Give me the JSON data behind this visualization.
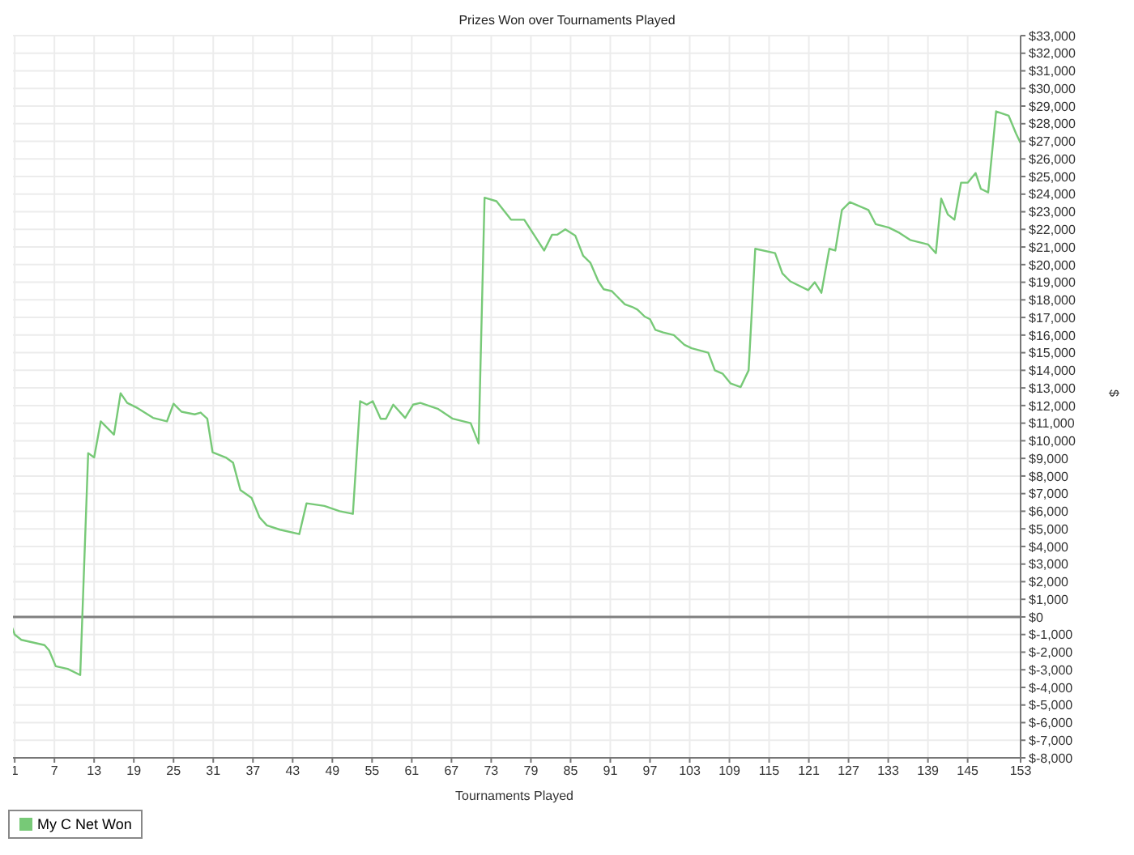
{
  "chart_data": {
    "type": "line",
    "title": "Prizes Won over Tournaments Played",
    "xlabel": "Tournaments Played",
    "ylabel": "$",
    "x": [
      0,
      1,
      2,
      5.5,
      6.2,
      7.2,
      9,
      10.9,
      12.1,
      13,
      14,
      16,
      17,
      18,
      19.6,
      21.9,
      24,
      25,
      26.2,
      28.2,
      29.1,
      30.1,
      30.9,
      32.9,
      34,
      35.1,
      36.8,
      38,
      39.1,
      41.1,
      44,
      45.1,
      47.8,
      50.1,
      52.1,
      53.2,
      54.2,
      55.1,
      56.3,
      57.1,
      58.2,
      60,
      61.2,
      62.3,
      65,
      67.2,
      69.9,
      71.1,
      72,
      73.8,
      76,
      78,
      81,
      82.2,
      83,
      84.2,
      85.7,
      86.9,
      88,
      89.2,
      90,
      91.2,
      92,
      93.2,
      94.3,
      95.1,
      96.2,
      97,
      97.8,
      99,
      100.6,
      102.2,
      103.3,
      105.8,
      106.8,
      108,
      109.2,
      110.7,
      111.9,
      112.9,
      115.9,
      117,
      118.2,
      120.9,
      121.9,
      122.9,
      124.1,
      125,
      126,
      127.2,
      130,
      131.1,
      133.1,
      134.7,
      136.3,
      139,
      140.2,
      141,
      142,
      143,
      144,
      145,
      146.2,
      147,
      148.1,
      149.3,
      151.2,
      152.3,
      153
    ],
    "series": [
      {
        "name": "My C Net Won",
        "color": "#77c977",
        "values": [
          0,
          -1000,
          -1300,
          -1600,
          -1900,
          -2800,
          -2950,
          -3300,
          9300,
          9050,
          11100,
          10350,
          12700,
          12150,
          11850,
          11300,
          11100,
          12100,
          11650,
          11500,
          11600,
          11250,
          9350,
          9050,
          8750,
          7200,
          6750,
          5650,
          5200,
          4950,
          4700,
          6450,
          6300,
          6000,
          5850,
          12250,
          12050,
          12250,
          11250,
          11250,
          12050,
          11300,
          12050,
          12150,
          11800,
          11250,
          11000,
          9850,
          23800,
          23600,
          22550,
          22550,
          20800,
          21700,
          21700,
          22000,
          21650,
          20500,
          20100,
          19050,
          18600,
          18500,
          18200,
          17750,
          17600,
          17450,
          17050,
          16900,
          16300,
          16150,
          16000,
          15450,
          15250,
          15000,
          14000,
          13800,
          13250,
          13050,
          14000,
          20900,
          20650,
          19500,
          19050,
          18550,
          19000,
          18400,
          20900,
          20800,
          23100,
          23550,
          23100,
          22300,
          22100,
          21800,
          21400,
          21150,
          20650,
          23750,
          22850,
          22550,
          24650,
          24650,
          25200,
          24300,
          24100,
          28700,
          28450,
          27450,
          26900
        ]
      }
    ],
    "xlim": [
      0,
      153
    ],
    "xticks": [
      1,
      7,
      13,
      19,
      25,
      31,
      37,
      43,
      49,
      55,
      61,
      67,
      73,
      79,
      85,
      91,
      97,
      103,
      109,
      115,
      121,
      127,
      133,
      139,
      145,
      153
    ],
    "ylim": [
      -8000,
      33000
    ],
    "yticks": [
      {
        "value": -8000,
        "label": "$-8,000"
      },
      {
        "value": -7000,
        "label": "$-7,000"
      },
      {
        "value": -6000,
        "label": "$-6,000"
      },
      {
        "value": -5000,
        "label": "$-5,000"
      },
      {
        "value": -4000,
        "label": "$-4,000"
      },
      {
        "value": -3000,
        "label": "$-3,000"
      },
      {
        "value": -2000,
        "label": "$-2,000"
      },
      {
        "value": -1000,
        "label": "$-1,000"
      },
      {
        "value": 0,
        "label": "$0"
      },
      {
        "value": 1000,
        "label": "$1,000"
      },
      {
        "value": 2000,
        "label": "$2,000"
      },
      {
        "value": 3000,
        "label": "$3,000"
      },
      {
        "value": 4000,
        "label": "$4,000"
      },
      {
        "value": 5000,
        "label": "$5,000"
      },
      {
        "value": 6000,
        "label": "$6,000"
      },
      {
        "value": 7000,
        "label": "$7,000"
      },
      {
        "value": 8000,
        "label": "$8,000"
      },
      {
        "value": 9000,
        "label": "$9,000"
      },
      {
        "value": 10000,
        "label": "$10,000"
      },
      {
        "value": 11000,
        "label": "$11,000"
      },
      {
        "value": 12000,
        "label": "$12,000"
      },
      {
        "value": 13000,
        "label": "$13,000"
      },
      {
        "value": 14000,
        "label": "$14,000"
      },
      {
        "value": 15000,
        "label": "$15,000"
      },
      {
        "value": 16000,
        "label": "$16,000"
      },
      {
        "value": 17000,
        "label": "$17,000"
      },
      {
        "value": 18000,
        "label": "$18,000"
      },
      {
        "value": 19000,
        "label": "$19,000"
      },
      {
        "value": 20000,
        "label": "$20,000"
      },
      {
        "value": 21000,
        "label": "$21,000"
      },
      {
        "value": 22000,
        "label": "$22,000"
      },
      {
        "value": 23000,
        "label": "$23,000"
      },
      {
        "value": 24000,
        "label": "$24,000"
      },
      {
        "value": 25000,
        "label": "$25,000"
      },
      {
        "value": 26000,
        "label": "$26,000"
      },
      {
        "value": 27000,
        "label": "$27,000"
      },
      {
        "value": 28000,
        "label": "$28,000"
      },
      {
        "value": 29000,
        "label": "$29,000"
      },
      {
        "value": 30000,
        "label": "$30,000"
      },
      {
        "value": 31000,
        "label": "$31,000"
      },
      {
        "value": 32000,
        "label": "$32,000"
      },
      {
        "value": 33000,
        "label": "$33,000"
      }
    ],
    "ref_lines": [
      {
        "axis": "y",
        "value": 0,
        "color": "#808080"
      }
    ],
    "grid": true,
    "legend": "bottom left",
    "marker": "none",
    "line_style": "solid"
  }
}
